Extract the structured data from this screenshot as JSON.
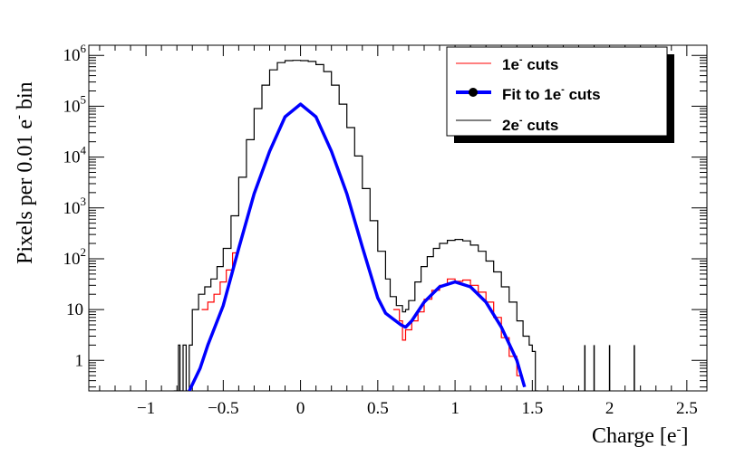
{
  "chart_data": {
    "type": "line",
    "xlabel": "Charge [e",
    "xlabel_sup": "-",
    "xlabel_tail": "]",
    "ylabel": "Pixels per 0.01 e",
    "ylabel_sup": "-",
    "ylabel_tail": " bin",
    "xlim": [
      -1.37,
      2.63
    ],
    "ylim_log10": [
      -0.6,
      6.2
    ],
    "scale_y": "log",
    "x_ticks": [
      -1,
      -0.5,
      0,
      0.5,
      1,
      1.5,
      2,
      2.5
    ],
    "x_tick_labels": [
      "−1",
      "−0.5",
      "0",
      "0.5",
      "1",
      "1.5",
      "2",
      "2.5"
    ],
    "y_ticks": [
      {
        "exp": 6,
        "label": "10",
        "sup": "6"
      },
      {
        "exp": 5,
        "label": "10",
        "sup": "5"
      },
      {
        "exp": 4,
        "label": "10",
        "sup": "4"
      },
      {
        "exp": 3,
        "label": "10",
        "sup": "3"
      },
      {
        "exp": 2,
        "label": "10",
        "sup": "2"
      },
      {
        "exp": 1,
        "label": "10",
        "sup": ""
      },
      {
        "exp": 0,
        "label": "1",
        "sup": ""
      }
    ],
    "legend": {
      "placement": "top-right",
      "entries": [
        {
          "label": "1e",
          "sup": "-",
          "tail": " cuts",
          "color": "#ff0000",
          "style": "thin-line"
        },
        {
          "label": "Fit to 1e",
          "sup": "-",
          "tail": " cuts",
          "color": "#0000ff",
          "style": "thick-line-marker"
        },
        {
          "label": "2e",
          "sup": "-",
          "tail": " cuts",
          "color": "#000000",
          "style": "thin-line"
        }
      ]
    },
    "series": [
      {
        "name": "2e- cuts",
        "color": "#000000",
        "kind": "step",
        "x": [
          -0.82,
          -0.79,
          -0.78,
          -0.76,
          -0.74,
          -0.72,
          -0.7,
          -0.66,
          -0.62,
          -0.58,
          -0.54,
          -0.5,
          -0.45,
          -0.4,
          -0.35,
          -0.3,
          -0.25,
          -0.2,
          -0.15,
          -0.1,
          -0.05,
          0.0,
          0.05,
          0.1,
          0.15,
          0.2,
          0.25,
          0.3,
          0.35,
          0.4,
          0.45,
          0.5,
          0.55,
          0.58,
          0.62,
          0.66,
          0.68,
          0.7,
          0.74,
          0.78,
          0.82,
          0.86,
          0.9,
          0.95,
          1.0,
          1.05,
          1.1,
          1.15,
          1.2,
          1.25,
          1.3,
          1.35,
          1.4,
          1.44,
          1.48,
          1.5,
          1.52
        ],
        "y": [
          0.2,
          2,
          0.2,
          2,
          0.2,
          2,
          10,
          20,
          28,
          40,
          70,
          160,
          700,
          4000,
          22000,
          90000,
          260000,
          520000,
          720000,
          790000,
          800000,
          790000,
          760000,
          660000,
          480000,
          260000,
          110000,
          38000,
          10500,
          2400,
          560,
          140,
          40,
          18,
          12,
          9,
          10,
          15,
          35,
          70,
          110,
          160,
          200,
          230,
          240,
          225,
          185,
          140,
          90,
          55,
          28,
          14,
          6,
          3,
          2,
          1.5,
          0.2
        ]
      },
      {
        "name": "1e- cuts",
        "color": "#ff0000",
        "kind": "step",
        "x": [
          -0.64,
          -0.6,
          -0.56,
          -0.52,
          -0.48,
          -0.44,
          0.6,
          0.64,
          0.66,
          0.68,
          0.72,
          0.76,
          0.8,
          0.85,
          0.9,
          0.95,
          1.0,
          1.05,
          1.1,
          1.15,
          1.2,
          1.25,
          1.3,
          1.35,
          1.4
        ],
        "y": [
          10,
          14,
          20,
          35,
          60,
          130,
          10,
          6,
          2.5,
          4,
          6,
          9,
          16,
          24,
          30,
          40,
          36,
          38,
          30,
          22,
          14,
          7,
          2.8,
          1.2,
          0.5
        ]
      },
      {
        "name": "Fit to 1e- cuts",
        "color": "#0000ff",
        "kind": "curve",
        "x": [
          -0.72,
          -0.65,
          -0.6,
          -0.5,
          -0.4,
          -0.3,
          -0.2,
          -0.1,
          0.0,
          0.1,
          0.2,
          0.3,
          0.4,
          0.5,
          0.55,
          0.6,
          0.65,
          0.68,
          0.72,
          0.8,
          0.9,
          1.0,
          1.1,
          1.2,
          1.3,
          1.4,
          1.45
        ],
        "y": [
          0.2,
          0.7,
          2,
          12,
          160,
          1900,
          13000,
          62000,
          110000,
          62000,
          13000,
          1900,
          170,
          17,
          8.5,
          6.5,
          5.0,
          4.5,
          6.0,
          14,
          28,
          35,
          28,
          14,
          4.5,
          1.0,
          0.3
        ]
      }
    ],
    "isolated_spikes": {
      "x": [
        1.84,
        1.9,
        2.0,
        2.16
      ],
      "y": [
        2,
        2,
        2,
        2
      ]
    }
  }
}
